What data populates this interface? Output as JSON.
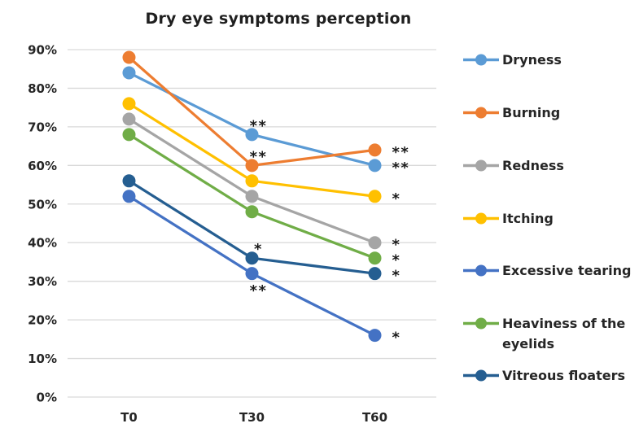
{
  "chart_data": {
    "type": "line",
    "title": "Dry eye symptoms perception",
    "categories": [
      "T0",
      "T30",
      "T60"
    ],
    "xlabel": "",
    "ylabel": "",
    "ylim": [
      0,
      90
    ],
    "y_tick_step": 10,
    "y_tick_labels": [
      "0%",
      "10%",
      "20%",
      "30%",
      "40%",
      "50%",
      "60%",
      "70%",
      "80%",
      "90%"
    ],
    "grid": true,
    "legend_position": "right",
    "grid_color": "#D9D9D9",
    "text_color": "#262626",
    "series": [
      {
        "name": "Dryness",
        "color": "#5B9BD5",
        "values": [
          84,
          68,
          60
        ],
        "sig": [
          "",
          "**",
          "**"
        ],
        "sig_pos": [
          "",
          "above",
          "right"
        ]
      },
      {
        "name": "Burning",
        "color": "#ED7D31",
        "values": [
          88,
          60,
          64
        ],
        "sig": [
          "",
          "**",
          "**"
        ],
        "sig_pos": [
          "",
          "above",
          "right"
        ]
      },
      {
        "name": "Redness",
        "color": "#A5A5A5",
        "values": [
          72,
          52,
          40
        ],
        "sig": [
          "",
          "",
          "*"
        ],
        "sig_pos": [
          "",
          "",
          "right"
        ]
      },
      {
        "name": "Itching",
        "color": "#FFC000",
        "values": [
          76,
          56,
          52
        ],
        "sig": [
          "",
          "",
          "*"
        ],
        "sig_pos": [
          "",
          "",
          "right"
        ]
      },
      {
        "name": "Excessive tearing",
        "color": "#4472C4",
        "values": [
          52,
          32,
          16
        ],
        "sig": [
          "",
          "**",
          "*"
        ],
        "sig_pos": [
          "",
          "below",
          "right"
        ]
      },
      {
        "name": "Heaviness of the eyelids",
        "color": "#70AD47",
        "values": [
          68,
          48,
          36
        ],
        "sig": [
          "",
          "",
          "*"
        ],
        "sig_pos": [
          "",
          "",
          "right"
        ]
      },
      {
        "name": "Vitreous floaters",
        "color": "#255E91",
        "values": [
          56,
          36,
          32
        ],
        "sig": [
          "",
          "*",
          "*"
        ],
        "sig_pos": [
          "",
          "above",
          "right"
        ]
      }
    ]
  }
}
